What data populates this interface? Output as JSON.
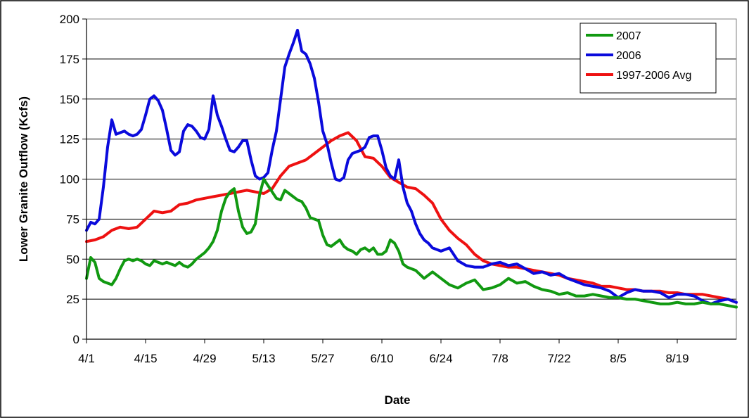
{
  "chart_data": {
    "type": "line",
    "xlabel": "Date",
    "ylabel": "Lower Granite Outflow (Kcfs)",
    "ylim": [
      0,
      200
    ],
    "yticks": [
      0,
      25,
      50,
      75,
      100,
      125,
      150,
      175,
      200
    ],
    "xlim": [
      0,
      154
    ],
    "xtick_labels": [
      "4/1",
      "4/15",
      "4/29",
      "5/13",
      "5/27",
      "6/10",
      "6/24",
      "7/8",
      "7/22",
      "8/5",
      "8/19"
    ],
    "xtick_positions": [
      0,
      14,
      28,
      42,
      56,
      70,
      84,
      98,
      112,
      126,
      140
    ],
    "grid": "horizontal",
    "legend_position": "top-right",
    "series": [
      {
        "name": "2007",
        "color": "#119911",
        "x": [
          0,
          1,
          2,
          3,
          4,
          5,
          6,
          7,
          8,
          9,
          10,
          11,
          12,
          13,
          14,
          15,
          16,
          17,
          18,
          19,
          20,
          21,
          22,
          23,
          24,
          25,
          26,
          27,
          28,
          29,
          30,
          31,
          32,
          33,
          34,
          35,
          36,
          37,
          38,
          39,
          40,
          41,
          42,
          43,
          44,
          45,
          46,
          47,
          48,
          49,
          50,
          51,
          52,
          53,
          54,
          55,
          56,
          57,
          58,
          59,
          60,
          61,
          62,
          63,
          64,
          65,
          66,
          67,
          68,
          69,
          70,
          71,
          72,
          73,
          74,
          75,
          76,
          78,
          80,
          82,
          84,
          86,
          88,
          90,
          92,
          94,
          96,
          98,
          100,
          102,
          104,
          106,
          108,
          110,
          112,
          114,
          116,
          118,
          120,
          122,
          124,
          126,
          128,
          130,
          132,
          134,
          136,
          138,
          140,
          142,
          144,
          146,
          148,
          150,
          152,
          154
        ],
        "values": [
          38,
          51,
          48,
          38,
          36,
          35,
          34,
          38,
          44,
          49,
          50,
          49,
          50,
          49,
          47,
          46,
          49,
          48,
          47,
          48,
          47,
          46,
          48,
          46,
          45,
          47,
          50,
          52,
          54,
          57,
          61,
          68,
          80,
          88,
          92,
          94,
          80,
          70,
          66,
          67,
          72,
          90,
          100,
          96,
          92,
          88,
          87,
          93,
          91,
          89,
          87,
          86,
          82,
          76,
          75,
          74,
          65,
          59,
          58,
          60,
          62,
          58,
          56,
          55,
          53,
          56,
          57,
          55,
          57,
          53,
          53,
          55,
          62,
          60,
          55,
          47,
          45,
          43,
          38,
          42,
          38,
          34,
          32,
          35,
          37,
          31,
          32,
          34,
          38,
          35,
          36,
          33,
          31,
          30,
          28,
          29,
          27,
          27,
          28,
          27,
          26,
          26,
          25,
          25,
          24,
          23,
          22,
          22,
          23,
          22,
          22,
          23,
          22,
          22,
          21,
          20
        ]
      },
      {
        "name": "2006",
        "color": "#0a0adc",
        "x": [
          0,
          1,
          2,
          3,
          4,
          5,
          6,
          7,
          8,
          9,
          10,
          11,
          12,
          13,
          14,
          15,
          16,
          17,
          18,
          19,
          20,
          21,
          22,
          23,
          24,
          25,
          26,
          27,
          28,
          29,
          30,
          31,
          32,
          33,
          34,
          35,
          36,
          37,
          38,
          39,
          40,
          41,
          42,
          43,
          44,
          45,
          46,
          47,
          48,
          49,
          50,
          51,
          52,
          53,
          54,
          55,
          56,
          57,
          58,
          59,
          60,
          61,
          62,
          63,
          64,
          65,
          66,
          67,
          68,
          69,
          70,
          71,
          72,
          73,
          74,
          75,
          76,
          77,
          78,
          79,
          80,
          81,
          82,
          84,
          86,
          88,
          90,
          92,
          94,
          96,
          98,
          100,
          102,
          104,
          106,
          108,
          110,
          112,
          114,
          116,
          118,
          120,
          122,
          124,
          126,
          128,
          130,
          132,
          134,
          136,
          138,
          140,
          142,
          144,
          146,
          148,
          150,
          152,
          154
        ],
        "values": [
          68,
          73,
          72,
          75,
          95,
          120,
          137,
          128,
          129,
          130,
          128,
          127,
          128,
          131,
          140,
          150,
          152,
          149,
          143,
          131,
          118,
          115,
          117,
          130,
          134,
          133,
          130,
          126,
          125,
          131,
          152,
          140,
          133,
          125,
          118,
          117,
          120,
          124,
          124,
          112,
          102,
          100,
          101,
          104,
          118,
          130,
          150,
          170,
          178,
          185,
          193,
          180,
          178,
          172,
          163,
          148,
          130,
          122,
          110,
          100,
          99,
          101,
          112,
          116,
          117,
          118,
          120,
          126,
          127,
          127,
          118,
          107,
          102,
          100,
          112,
          95,
          85,
          80,
          72,
          66,
          62,
          60,
          57,
          55,
          57,
          49,
          46,
          45,
          45,
          47,
          48,
          46,
          47,
          44,
          41,
          42,
          40,
          41,
          38,
          36,
          34,
          33,
          32,
          30,
          26,
          29,
          31,
          30,
          30,
          29,
          26,
          28,
          28,
          27,
          24,
          22,
          24,
          25,
          23
        ]
      },
      {
        "name": "1997-2006 Avg",
        "color": "#ee1111",
        "x": [
          0,
          2,
          4,
          6,
          8,
          10,
          12,
          14,
          16,
          18,
          20,
          22,
          24,
          26,
          28,
          30,
          32,
          34,
          36,
          38,
          40,
          42,
          44,
          46,
          48,
          50,
          52,
          54,
          56,
          58,
          60,
          62,
          64,
          66,
          68,
          70,
          72,
          74,
          76,
          78,
          80,
          82,
          84,
          86,
          88,
          90,
          92,
          94,
          96,
          98,
          100,
          102,
          104,
          106,
          108,
          110,
          112,
          114,
          116,
          118,
          120,
          122,
          124,
          126,
          128,
          130,
          132,
          134,
          136,
          138,
          140,
          142,
          144,
          146,
          148,
          150,
          152,
          154
        ],
        "values": [
          61,
          62,
          64,
          68,
          70,
          69,
          70,
          75,
          80,
          79,
          80,
          84,
          85,
          87,
          88,
          89,
          90,
          91,
          92,
          93,
          92,
          91,
          94,
          102,
          108,
          110,
          112,
          116,
          120,
          124,
          127,
          129,
          124,
          114,
          113,
          108,
          101,
          98,
          95,
          94,
          90,
          85,
          75,
          68,
          63,
          59,
          53,
          49,
          47,
          46,
          45,
          45,
          44,
          43,
          42,
          41,
          40,
          38,
          37,
          36,
          35,
          33,
          33,
          32,
          31,
          31,
          30,
          30,
          30,
          29,
          29,
          28,
          28,
          28,
          27,
          26,
          25,
          23
        ]
      }
    ]
  }
}
